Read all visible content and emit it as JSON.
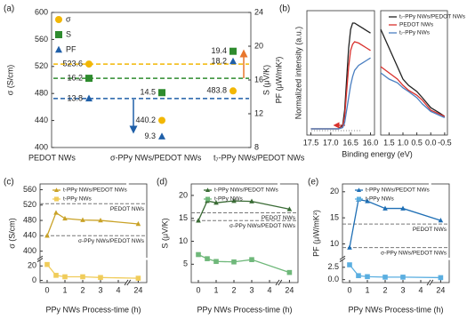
{
  "chart_data": [
    {
      "panel": "(a)",
      "type": "scatter",
      "categories": [
        "PEDOT NWs",
        "σ-PPy NWs/PEDOT NWs",
        "t₇-PPy NWs/PEDOT NWs"
      ],
      "ylabel": "σ (S/cm)",
      "y2label": "S (μV/K)",
      "y3label": "PF (μW/mK²)",
      "ylim": [
        400,
        600
      ],
      "yticks": [
        400,
        440,
        480,
        520,
        560,
        600
      ],
      "y2lim": [
        8,
        24
      ],
      "y2ticks": [
        8,
        12,
        16,
        20,
        24
      ],
      "baseline_dashes": true,
      "legend": "upper left",
      "series": [
        {
          "name": "σ",
          "color": "#f2b705",
          "marker": "circle",
          "values": [
            523.6,
            440.2,
            483.8
          ]
        },
        {
          "name": "S",
          "color": "#2e8b2e",
          "marker": "square",
          "axis": "y2",
          "values": [
            16.2,
            14.5,
            19.4
          ]
        },
        {
          "name": "PF",
          "color": "#1f5fa8",
          "marker": "triangle",
          "axis": "y2",
          "values": [
            13.8,
            9.3,
            18.2
          ]
        }
      ]
    },
    {
      "panel": "(b)",
      "type": "line",
      "ylabel": "Normalized intensity (a.u.)",
      "xlabel": "Binding energy (eV)",
      "x": [
        17.5,
        17.0,
        16.8,
        16.7,
        16.65,
        16.6,
        16.55,
        16.5,
        16.45,
        16.4,
        16.3,
        16.2,
        16.1,
        16.0
      ],
      "xlim": [
        17.6,
        15.9
      ],
      "xticks": [
        17.5,
        {
          "value": 17,
          "label": "17.0"
        },
        16.5,
        {
          "value": 16,
          "label": "16.0"
        }
      ],
      "ylim": [
        0,
        1
      ],
      "series": [
        {
          "color": "#222222",
          "values": [
            0.05,
            0.05,
            0.05,
            0.08,
            0.2,
            0.45,
            0.7,
            0.85,
            0.9,
            0.9,
            0.88,
            0.86,
            0.84,
            0.82
          ]
        },
        {
          "color": "#d9302c",
          "values": [
            0.05,
            0.05,
            0.05,
            0.07,
            0.15,
            0.35,
            0.55,
            0.68,
            0.73,
            0.75,
            0.74,
            0.72,
            0.7,
            0.68
          ]
        },
        {
          "color": "#4a7fc1",
          "values": [
            0.05,
            0.05,
            0.05,
            0.06,
            0.1,
            0.2,
            0.3,
            0.4,
            0.47,
            0.52,
            0.56,
            0.58,
            0.6,
            0.62
          ]
        }
      ]
    },
    {
      "type": "line",
      "x": [
        1.8,
        1.5,
        1.2,
        1.0,
        0.8,
        0.5,
        0.3,
        0.0,
        -0.3,
        -0.5
      ],
      "xlim": [
        1.8,
        -0.6
      ],
      "xticks": [
        1.5,
        {
          "value": 1,
          "label": "1.0"
        },
        0.5,
        {
          "value": 0,
          "label": "0.0"
        },
        -0.5
      ],
      "ylim": [
        0,
        1
      ],
      "legend": "upper right",
      "series": [
        {
          "name": "t₇-PPy NWs/PEDOT NWs",
          "color": "#222222",
          "values": [
            0.85,
            0.7,
            0.55,
            0.45,
            0.4,
            0.35,
            0.3,
            0.22,
            0.18,
            0.15
          ]
        },
        {
          "name": "PEDOT NWs",
          "color": "#d9302c",
          "values": [
            0.55,
            0.5,
            0.45,
            0.4,
            0.36,
            0.32,
            0.28,
            0.2,
            0.17,
            0.15
          ]
        },
        {
          "name": "t₇-PPy NWs",
          "color": "#4a7fc1",
          "values": [
            0.5,
            0.45,
            0.42,
            0.38,
            0.35,
            0.3,
            0.25,
            0.19,
            0.16,
            0.14
          ]
        }
      ]
    },
    {
      "panel": "(c)",
      "type": "line",
      "xlabel": "PPy NWs Process-time (h)",
      "ylabel": "σ (S/cm)",
      "x": [
        0,
        0.5,
        1,
        2,
        3,
        24
      ],
      "xlim": [
        -0.4,
        24.6
      ],
      "xbreak": [
        4.4,
        23.4
      ],
      "xticks": [
        0,
        1,
        2,
        3,
        4,
        24
      ],
      "ylim": [
        -3,
        575
      ],
      "ybreak": [
        27,
        385
      ],
      "yticks": [
        0,
        20,
        400,
        440,
        480,
        520,
        560
      ],
      "legend": "upper left",
      "reference_lines": [
        {
          "value": 523.6,
          "label": "PEDOT NWs"
        },
        {
          "value": 440.2,
          "label": "σ-PPy NWs/PEDOT NWs"
        }
      ],
      "series": [
        {
          "name": "t-PPy NWs/PEDOT NWs",
          "color": "#c9a227",
          "marker": "triangle",
          "values": [
            440.2,
            500,
            485,
            481,
            480,
            471
          ]
        },
        {
          "name": "t-PPy NWs",
          "color": "#f0cc5a",
          "marker": "square",
          "values": [
            22,
            7,
            5,
            5,
            4,
            3
          ]
        }
      ]
    },
    {
      "panel": "(d)",
      "type": "line",
      "xlabel": "PPy NWs Process-time (h)",
      "ylabel": "S (μV/K)",
      "x": [
        0,
        0.5,
        1,
        2,
        3,
        24
      ],
      "xlim": [
        -0.4,
        24.6
      ],
      "xbreak": [
        4.4,
        23.4
      ],
      "xticks": [
        0,
        1,
        2,
        3,
        4,
        24
      ],
      "ylim": [
        1,
        22.5
      ],
      "yticks": [
        5,
        10,
        15,
        20
      ],
      "legend": "upper left",
      "reference_lines": [
        {
          "value": 16.2,
          "label": "PEDOT NWs"
        },
        {
          "value": 14.5,
          "label": "σ-PPy NWs/PEDOT NWs"
        }
      ],
      "series": [
        {
          "name": "t-PPy NWs/PEDOT NWs",
          "color": "#3a6b35",
          "marker": "triangle",
          "values": [
            14.5,
            18.8,
            18.4,
            18.8,
            18.7,
            17
          ]
        },
        {
          "name": "t-PPy NWs",
          "color": "#6fb87a",
          "marker": "square",
          "values": [
            7.1,
            6.2,
            5.6,
            5.5,
            6,
            3.2
          ]
        }
      ]
    },
    {
      "panel": "(e)",
      "type": "line",
      "xlabel": "PPy NWs Process-time (h)",
      "ylabel": "PF (μW/mK²)",
      "x": [
        0,
        0.5,
        1,
        2,
        3,
        24
      ],
      "xlim": [
        -0.4,
        24.6
      ],
      "xbreak": [
        4.4,
        23.4
      ],
      "xticks": [
        0,
        1,
        2,
        3,
        4,
        24
      ],
      "ylim": [
        -0.6,
        21.5
      ],
      "ybreak": [
        3.8,
        7.5
      ],
      "yticks": [
        {
          "value": 0,
          "label": "0.0"
        },
        2.5,
        10,
        15,
        20
      ],
      "legend": "upper left",
      "reference_lines": [
        {
          "value": 13.8,
          "label": "PEDOT NWs"
        },
        {
          "value": 9.3,
          "label": "σ-PPy NWs/PEDOT NWs"
        }
      ],
      "series": [
        {
          "name": "t-PPy NWs/PEDOT NWs",
          "color": "#1f6fb5",
          "marker": "triangle",
          "values": [
            9.3,
            18.5,
            18.2,
            16.8,
            16.8,
            14.5
          ]
        },
        {
          "name": "t-PPy NWs",
          "color": "#5aaee0",
          "marker": "square",
          "values": [
            3.0,
            0.8,
            0.6,
            0.5,
            0.5,
            0.4
          ]
        }
      ]
    }
  ]
}
